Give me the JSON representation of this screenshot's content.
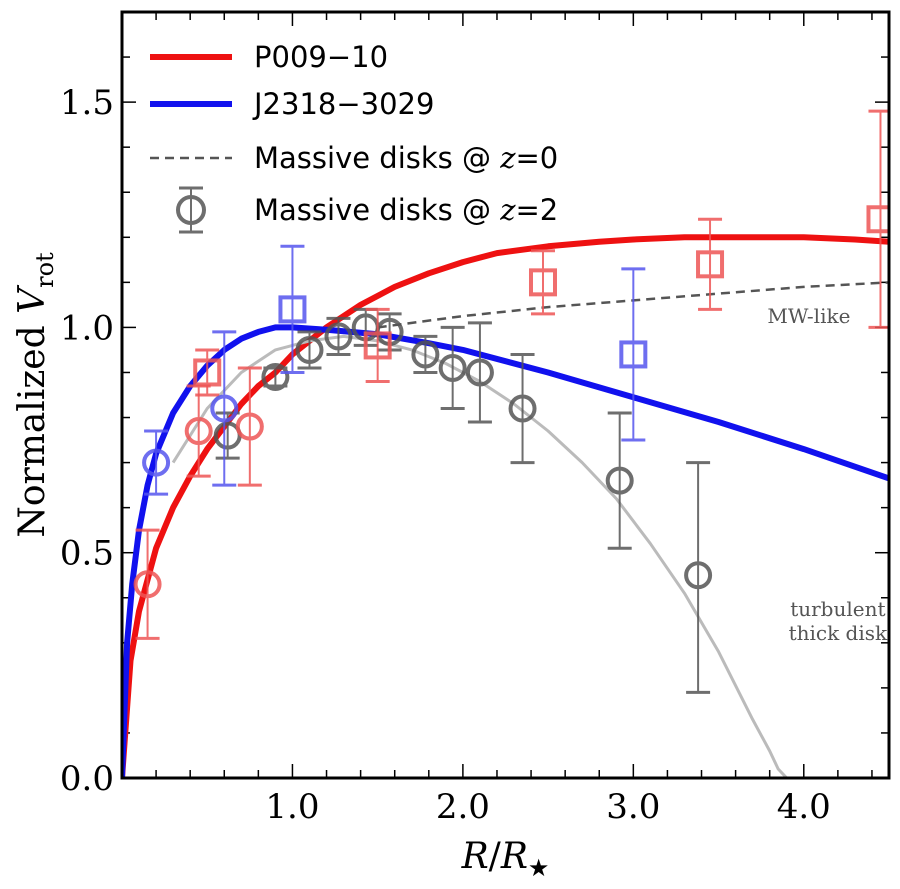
{
  "chart_data": {
    "type": "scatter",
    "xlabel": "R/R★",
    "ylabel": "Normalized V_rot",
    "xlim": [
      0,
      4.5
    ],
    "ylim": [
      0,
      1.7
    ],
    "x_ticks": [
      1.0,
      2.0,
      3.0,
      4.0
    ],
    "x_tick_labels": [
      "1.0",
      "2.0",
      "3.0",
      "4.0"
    ],
    "y_ticks": [
      0.0,
      0.5,
      1.0,
      1.5
    ],
    "y_tick_labels": [
      "0.0",
      "0.5",
      "1.0",
      "1.5"
    ],
    "legend_position": "top-left",
    "legend": [
      {
        "label_main": "P009−10",
        "label_var": "",
        "label_tail": "",
        "style": "solid",
        "color": "#ee1111"
      },
      {
        "label_main": "J2318−3029",
        "label_var": "",
        "label_tail": "",
        "style": "solid",
        "color": "#1111ee"
      },
      {
        "label_main": "Massive disks @ ",
        "label_var": "z",
        "label_tail": "=0",
        "style": "dashed",
        "color": "#555555"
      },
      {
        "label_main": "Massive disks @ ",
        "label_var": "z",
        "label_tail": "=2",
        "style": "marker",
        "color": "#555555"
      }
    ],
    "annotations": [
      {
        "lines": [
          "MW-like"
        ],
        "x": 4.03,
        "y": 1.01
      },
      {
        "lines": [
          "turbulent",
          "thick disk"
        ],
        "x": 4.2,
        "y": 0.36
      }
    ],
    "curves": [
      {
        "name": "P009−10",
        "color": "#ee1111",
        "style": "solid",
        "x": [
          0.0,
          0.05,
          0.1,
          0.2,
          0.3,
          0.4,
          0.5,
          0.6,
          0.7,
          0.8,
          0.9,
          1.0,
          1.2,
          1.4,
          1.6,
          1.8,
          2.0,
          2.2,
          2.5,
          2.8,
          3.0,
          3.3,
          3.6,
          4.0,
          4.3,
          4.5
        ],
        "y": [
          0.0,
          0.26,
          0.37,
          0.51,
          0.6,
          0.67,
          0.73,
          0.78,
          0.83,
          0.87,
          0.9,
          0.94,
          1.0,
          1.05,
          1.09,
          1.12,
          1.145,
          1.165,
          1.18,
          1.19,
          1.195,
          1.2,
          1.2,
          1.2,
          1.195,
          1.19
        ]
      },
      {
        "name": "J2318−3029",
        "color": "#1111ee",
        "style": "solid",
        "x": [
          0.0,
          0.03,
          0.06,
          0.1,
          0.15,
          0.2,
          0.3,
          0.4,
          0.5,
          0.6,
          0.7,
          0.8,
          0.9,
          1.0,
          1.2,
          1.5,
          1.8,
          2.0,
          2.5,
          3.0,
          3.5,
          4.0,
          4.5
        ],
        "y": [
          0.0,
          0.3,
          0.43,
          0.55,
          0.65,
          0.72,
          0.81,
          0.87,
          0.915,
          0.95,
          0.975,
          0.99,
          1.0,
          1.0,
          0.995,
          0.985,
          0.965,
          0.95,
          0.9,
          0.845,
          0.79,
          0.73,
          0.665
        ]
      },
      {
        "name": "Massive disks @ z=0",
        "color": "#555555",
        "style": "dashed",
        "x": [
          1.5,
          2.0,
          2.5,
          3.0,
          3.5,
          4.0,
          4.5
        ],
        "y": [
          1.0,
          1.025,
          1.045,
          1.06,
          1.075,
          1.09,
          1.1
        ]
      },
      {
        "name": "",
        "color": "#bbbbbb",
        "style": "solid-thin",
        "x": [
          0.3,
          0.5,
          0.7,
          0.9,
          1.1,
          1.3,
          1.5,
          1.7,
          1.9,
          2.1,
          2.3,
          2.5,
          2.7,
          2.9,
          3.1,
          3.3,
          3.5,
          3.7,
          3.8,
          3.85,
          3.9
        ],
        "y": [
          0.7,
          0.82,
          0.9,
          0.95,
          0.97,
          0.98,
          0.97,
          0.95,
          0.92,
          0.88,
          0.83,
          0.77,
          0.7,
          0.62,
          0.52,
          0.41,
          0.28,
          0.13,
          0.06,
          0.02,
          0.0
        ]
      }
    ],
    "series": [
      {
        "name": "Massive disks @ z=2",
        "marker": "circle",
        "color": "#555555",
        "x": [
          0.62,
          0.9,
          1.1,
          1.27,
          1.43,
          1.57,
          1.78,
          1.94,
          2.1,
          2.35,
          2.92,
          3.38
        ],
        "y": [
          0.76,
          0.89,
          0.95,
          0.98,
          1.0,
          0.99,
          0.94,
          0.91,
          0.9,
          0.82,
          0.66,
          0.45
        ],
        "err_low": [
          0.05,
          0.02,
          0.04,
          0.04,
          0.04,
          0.04,
          0.04,
          0.09,
          0.11,
          0.12,
          0.15,
          0.26
        ],
        "err_high": [
          0.05,
          0.02,
          0.04,
          0.04,
          0.04,
          0.04,
          0.04,
          0.09,
          0.11,
          0.12,
          0.15,
          0.25
        ]
      },
      {
        "name": "P009−10",
        "marker": "circle",
        "color": "#ee5555",
        "x": [
          0.15,
          0.45,
          0.75
        ],
        "y": [
          0.43,
          0.77,
          0.78
        ],
        "err_low": [
          0.12,
          0.1,
          0.13
        ],
        "err_high": [
          0.12,
          0.1,
          0.13
        ]
      },
      {
        "name": "P009−10",
        "marker": "square",
        "color": "#ee5555",
        "x": [
          0.5,
          1.5,
          2.47,
          3.45,
          4.45
        ],
        "y": [
          0.9,
          0.96,
          1.1,
          1.14,
          1.24
        ],
        "err_low": [
          0.05,
          0.08,
          0.07,
          0.1,
          0.24
        ],
        "err_high": [
          0.05,
          0.08,
          0.07,
          0.1,
          0.24
        ]
      },
      {
        "name": "J2318−3029",
        "marker": "circle",
        "color": "#5555ee",
        "x": [
          0.2,
          0.6
        ],
        "y": [
          0.7,
          0.82
        ],
        "err_low": [
          0.07,
          0.17
        ],
        "err_high": [
          0.07,
          0.17
        ]
      },
      {
        "name": "J2318−3029",
        "marker": "square",
        "color": "#5555ee",
        "x": [
          1.0,
          3.0
        ],
        "y": [
          1.04,
          0.94
        ],
        "err_low": [
          0.14,
          0.19
        ],
        "err_high": [
          0.14,
          0.19
        ]
      }
    ]
  }
}
